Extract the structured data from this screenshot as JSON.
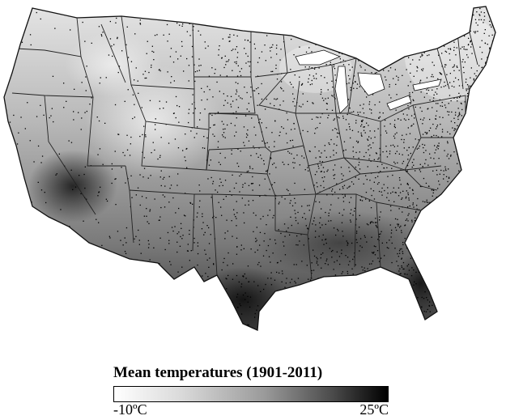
{
  "map": {
    "region": "Contiguous United States",
    "palette": {
      "cold": "#f2f2f2",
      "mid": "#8c8c8c",
      "warm": "#1a1a1a",
      "borders": "#1f1f1f",
      "stations": "#000000"
    }
  },
  "legend": {
    "title": "Mean temperatures (1901-2011)",
    "min_label": "-10ºC",
    "max_label": "25ºC",
    "min_color": "#ffffff",
    "max_color": "#000000"
  }
}
